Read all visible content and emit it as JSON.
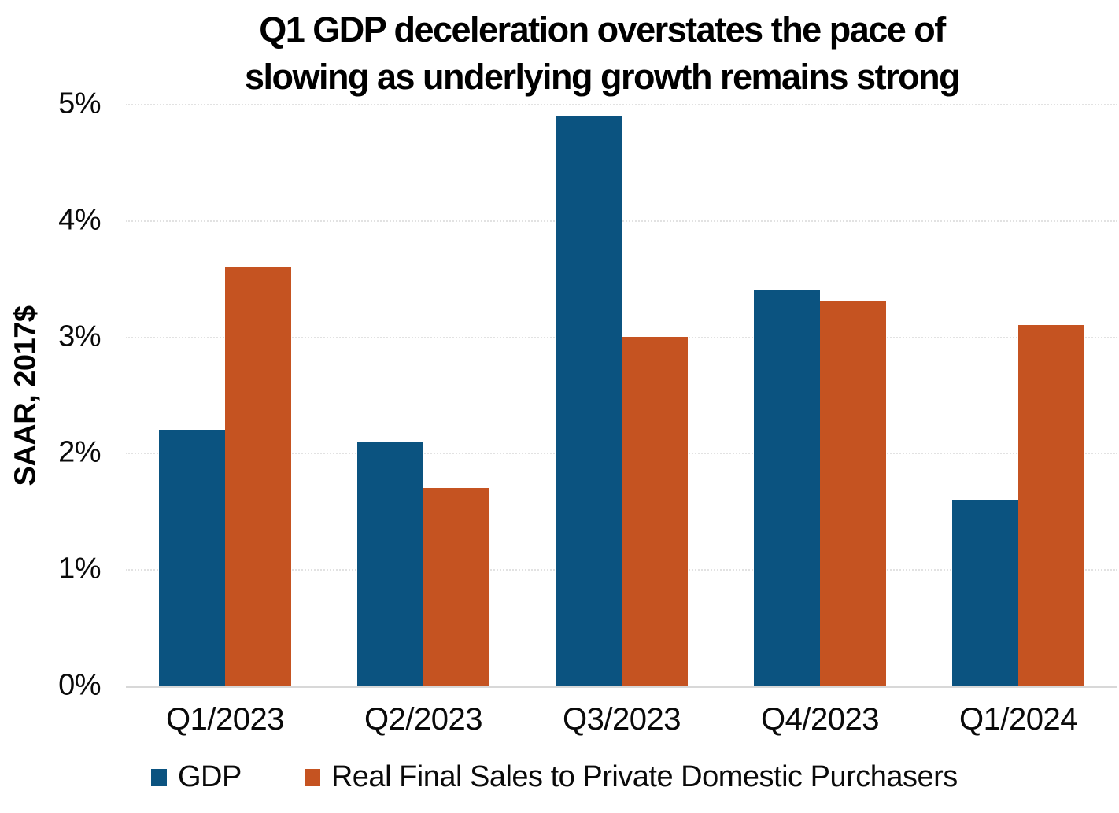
{
  "chart_data": {
    "type": "bar",
    "title": "Q1 GDP deceleration overstates the pace of slowing as underlying growth remains strong",
    "title_lines": [
      "Q1 GDP deceleration overstates the pace of",
      "slowing as underlying growth remains strong"
    ],
    "ylabel": "SAAR, 2017$",
    "xlabel": "",
    "categories": [
      "Q1/2023",
      "Q2/2023",
      "Q3/2023",
      "Q4/2023",
      "Q1/2024"
    ],
    "series": [
      {
        "name": "GDP",
        "color": "#0b5380",
        "values": [
          2.2,
          2.1,
          4.9,
          3.4,
          1.6
        ]
      },
      {
        "name": "Real Final Sales to Private Domestic Purchasers",
        "color": "#c55321",
        "values": [
          3.6,
          1.7,
          3.0,
          3.3,
          3.1
        ]
      }
    ],
    "y_ticks": [
      "0%",
      "1%",
      "2%",
      "3%",
      "4%",
      "5%"
    ],
    "ylim": [
      0,
      5
    ],
    "grid": true,
    "legend_position": "bottom",
    "styles": {
      "gridline_color": "#e2e2e2",
      "baseline_color": "#d8d8d8",
      "text_color": "#0a0a0a"
    }
  }
}
